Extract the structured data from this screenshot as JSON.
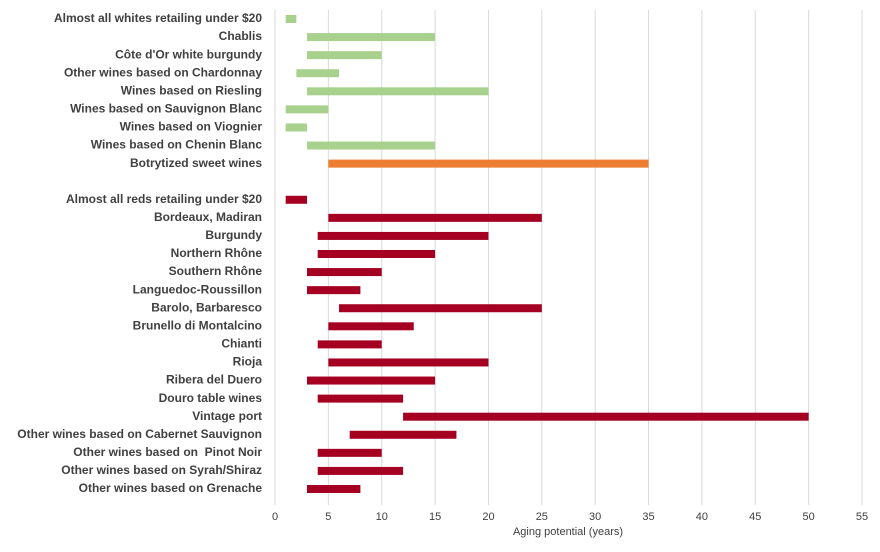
{
  "chart_data": {
    "type": "bar",
    "categories": [
      "Almost all whites retailing under $20",
      "Chablis",
      "Côte d'Or white burgundy",
      "Other wines based on Chardonnay",
      "Wines based on Riesling",
      "Wines based on Sauvignon Blanc",
      "Wines based on Viognier",
      "Wines based on Chenin Blanc",
      "Botrytized sweet wines",
      null,
      "Almost all reds retailing under $20",
      "Bordeaux, Madiran",
      "Burgundy",
      "Northern Rhône",
      "Southern Rhône",
      "Languedoc-Roussillon",
      "Barolo, Barbaresco",
      "Brunello di Montalcino",
      "Chianti",
      "Rioja",
      "Ribera del Duero",
      "Douro table wines",
      "Vintage port",
      "Other wines based on Cabernet Sauvignon",
      "Other wines based on  Pinot Noir",
      "Other wines based on Syrah/Shiraz",
      "Other wines based on Grenache"
    ],
    "starts": [
      1,
      3,
      3,
      2,
      3,
      1,
      1,
      3,
      5,
      null,
      1,
      5,
      4,
      4,
      3,
      3,
      6,
      5,
      4,
      5,
      3,
      4,
      12,
      7,
      4,
      4,
      3
    ],
    "ends": [
      2,
      15,
      10,
      6,
      20,
      5,
      3,
      15,
      35,
      null,
      3,
      25,
      20,
      15,
      10,
      8,
      25,
      13,
      10,
      20,
      15,
      12,
      50,
      17,
      10,
      12,
      8
    ],
    "colors": [
      "#a9d18e",
      "#a9d18e",
      "#a9d18e",
      "#a9d18e",
      "#a9d18e",
      "#a9d18e",
      "#a9d18e",
      "#a9d18e",
      "#ed7d31",
      null,
      "#a50021",
      "#a50021",
      "#a50021",
      "#a50021",
      "#a50021",
      "#a50021",
      "#a50021",
      "#a50021",
      "#a50021",
      "#a50021",
      "#a50021",
      "#a50021",
      "#a50021",
      "#a50021",
      "#a50021",
      "#a50021",
      "#a50021"
    ],
    "xlim": [
      0,
      55
    ],
    "xticks": [
      0,
      5,
      10,
      15,
      20,
      25,
      30,
      35,
      40,
      45,
      50,
      55
    ],
    "xlabel": "Aging potential (years)",
    "grid": true
  }
}
